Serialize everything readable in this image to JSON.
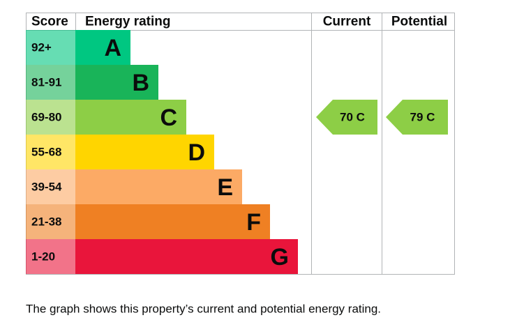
{
  "header": {
    "score": "Score",
    "rating": "Energy rating",
    "current": "Current",
    "potential": "Potential"
  },
  "bands": [
    {
      "score": "92+",
      "letter": "A",
      "color": "#00c781"
    },
    {
      "score": "81-91",
      "letter": "B",
      "color": "#19b459"
    },
    {
      "score": "69-80",
      "letter": "C",
      "color": "#8dce46"
    },
    {
      "score": "55-68",
      "letter": "D",
      "color": "#ffd500"
    },
    {
      "score": "39-54",
      "letter": "E",
      "color": "#fcaa65"
    },
    {
      "score": "21-38",
      "letter": "F",
      "color": "#ef8023"
    },
    {
      "score": "1-20",
      "letter": "G",
      "color": "#e9153b"
    }
  ],
  "current": "70 C",
  "potential": "79 C",
  "caption": "The graph shows this property’s current and potential energy rating."
}
